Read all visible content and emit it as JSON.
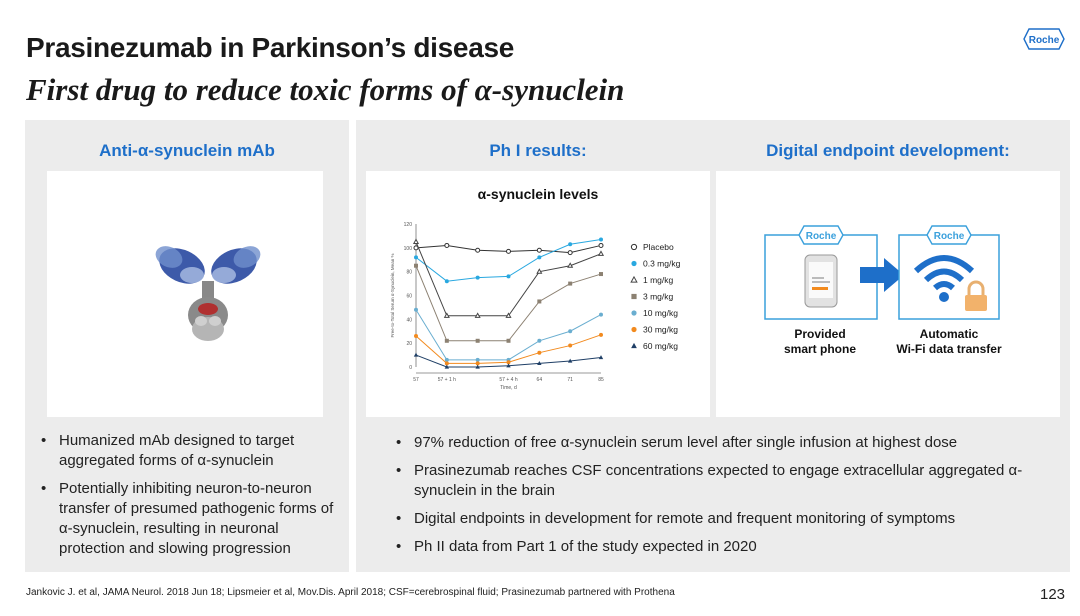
{
  "header": {
    "title": "Prasinezumab in Parkinson’s disease",
    "subtitle": "First drug to reduce toxic forms of α-synuclein",
    "logo_text": "Roche"
  },
  "left_panel": {
    "heading": "Anti-α-synuclein mAb",
    "image_icon": "antibody-molecule-icon",
    "bullets": [
      "Humanized mAb designed to target aggregated forms of α-synuclein",
      "Potentially inhibiting neuron-to-neuron transfer of presumed pathogenic forms of α-synuclein, resulting in neuronal protection and slowing progression"
    ]
  },
  "middle_panel": {
    "heading": "Ph I results:"
  },
  "right_panel": {
    "heading": "Digital endpoint development:",
    "phone_box_logo": "Roche",
    "wifi_box_logo": "Roche",
    "phone_label_1": "Provided",
    "phone_label_2": "smart phone",
    "wifi_label_1": "Automatic",
    "wifi_label_2": "Wi-Fi data transfer"
  },
  "results_bullets": [
    "97% reduction of free α-synuclein serum level after single infusion at highest dose",
    "Prasinezumab reaches CSF concentrations expected to engage extracellular aggregated α-synuclein in the brain",
    "Digital endpoints in development for remote and frequent monitoring of symptoms",
    "Ph II data from Part 1 of the study expected in 2020"
  ],
  "footer": {
    "citation": "Jankovic J. et al, JAMA Neurol. 2018 Jun 18; Lipsmeier et al, Mov.Dis. April 2018; CSF=cerebrospinal fluid; Prasinezumab partnered with Prothena",
    "page_number": "123"
  },
  "chart_data": {
    "type": "line",
    "title": "α-synuclein levels",
    "xlabel": "Time, d",
    "ylabel": "Free-to-Total Serum α-Synuclein, Mean %",
    "x": [
      0,
      1,
      2,
      3,
      4,
      5,
      6
    ],
    "x_tick_labels": [
      "57",
      "57 + 1 h",
      "57 + 4 h",
      "64",
      "71",
      "85"
    ],
    "x_tick_positions": [
      0,
      1,
      3,
      4,
      5,
      6
    ],
    "ylim": [
      0,
      120
    ],
    "y_ticks": [
      "0",
      "20",
      "40",
      "60",
      "80",
      "100",
      "120"
    ],
    "series": [
      {
        "name": "Placebo",
        "color": "#333333",
        "marker": "open-circle",
        "values": [
          100,
          102,
          98,
          97,
          98,
          96,
          102
        ]
      },
      {
        "name": "0.3 mg/kg",
        "color": "#29a8e0",
        "marker": "circle",
        "values": [
          92,
          72,
          75,
          76,
          92,
          103,
          107
        ]
      },
      {
        "name": "1 mg/kg",
        "color": "#444444",
        "marker": "open-triangle",
        "values": [
          105,
          43,
          43,
          43,
          80,
          85,
          95
        ]
      },
      {
        "name": "3 mg/kg",
        "color": "#8c8172",
        "marker": "square",
        "values": [
          85,
          22,
          22,
          22,
          55,
          70,
          78
        ]
      },
      {
        "name": "10 mg/kg",
        "color": "#6aaed0",
        "marker": "circle",
        "values": [
          48,
          6,
          6,
          6,
          22,
          30,
          44
        ]
      },
      {
        "name": "30 mg/kg",
        "color": "#f28a1e",
        "marker": "circle",
        "values": [
          26,
          3,
          3,
          4,
          12,
          18,
          27
        ]
      },
      {
        "name": "60 mg/kg",
        "color": "#1f3f66",
        "marker": "triangle",
        "values": [
          10,
          0,
          0,
          1,
          3,
          5,
          8
        ]
      }
    ]
  }
}
